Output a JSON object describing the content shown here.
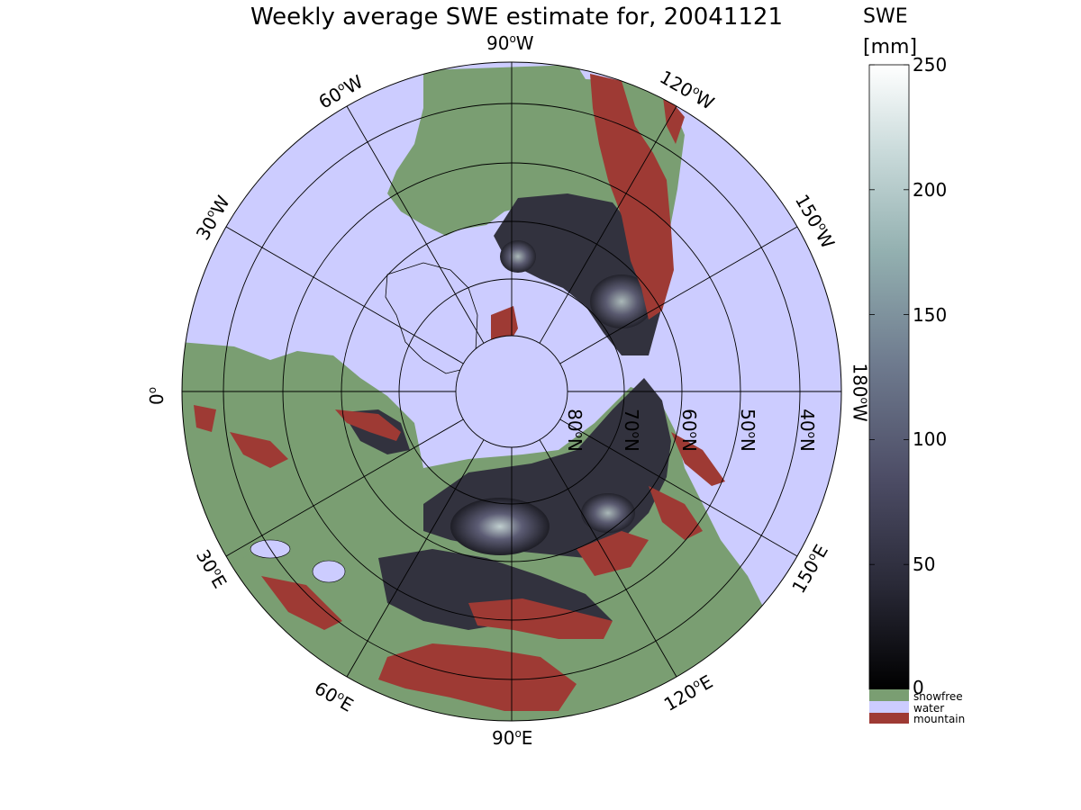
{
  "title": "Weekly average SWE estimate for, 20041121",
  "colorbar": {
    "title_line1": "SWE",
    "title_line2": "[mm]",
    "ticks": [
      "0",
      "50",
      "100",
      "150",
      "200",
      "250"
    ],
    "tick_values": [
      0,
      50,
      100,
      150,
      200,
      250
    ],
    "range": [
      0,
      250
    ],
    "gradient_stops": [
      "#000000",
      "#2a2a38",
      "#4d4d66",
      "#6e7a8e",
      "#93b0b0",
      "#c9dada",
      "#ffffff"
    ],
    "categories": [
      {
        "label": "snowfree",
        "color": "#7a9e72"
      },
      {
        "label": "water",
        "color": "#ccccff"
      },
      {
        "label": "mountain",
        "color": "#9e3a34"
      }
    ]
  },
  "map": {
    "projection": "north-polar-stereographic",
    "ocean_color": "#ccccff",
    "land_color": "#7a9e72",
    "mountain_color": "#9e3a34",
    "lon_labels": {
      "l0": "0",
      "l30E": "30",
      "l60E": "60",
      "l90E": "90",
      "l120E": "120",
      "l150E": "150",
      "l180W": "180",
      "l150W": "150",
      "l120W": "120",
      "l90W": "90",
      "l60W": "60",
      "l30W": "30"
    },
    "lon_suffix": {
      "E": "E",
      "W": "W"
    },
    "lat_labels": [
      "80",
      "70",
      "60",
      "50",
      "40"
    ],
    "lat_suffix": "N",
    "degree_symbol": "o"
  }
}
